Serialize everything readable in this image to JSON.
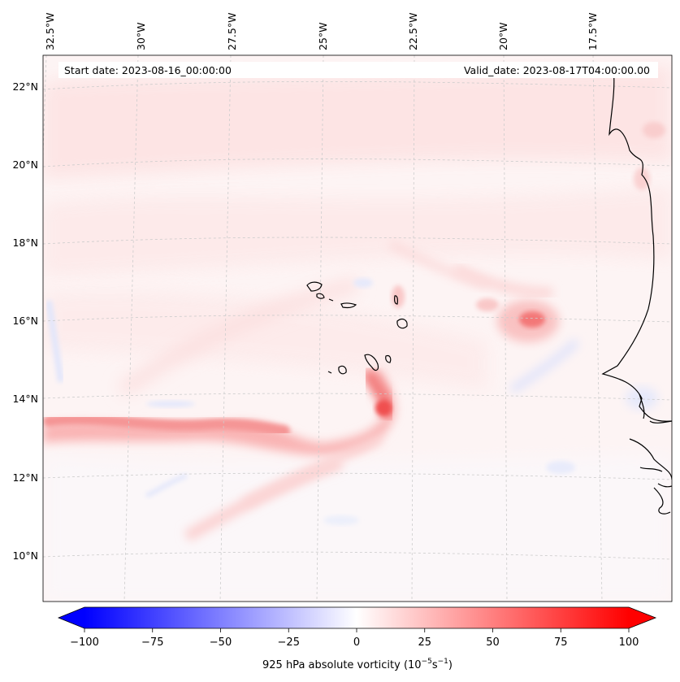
{
  "info": {
    "start_date": "Start date: 2023-08-16_00:00:00",
    "valid_date": "Valid_date: 2023-08-17T04:00:00.00"
  },
  "map": {
    "lon_ticks": [
      "32.5°W",
      "30°W",
      "27.5°W",
      "25°W",
      "22.5°W",
      "20°W",
      "17.5°W"
    ],
    "lat_ticks": [
      "22°N",
      "20°N",
      "18°N",
      "16°N",
      "14°N",
      "12°N",
      "10°N"
    ],
    "coastline_color": "#000000",
    "gridline_color": "#cccccc"
  },
  "colorbar": {
    "ticks": [
      "−100",
      "−75",
      "−50",
      "−25",
      "0",
      "25",
      "50",
      "75",
      "100"
    ],
    "min": -100,
    "max": 100,
    "label": "925 hPa absolute vorticity (10",
    "label_exp1": "−5",
    "label_mid": "s",
    "label_exp2": "−1",
    "label_end": ")",
    "negative_color": "#0000ff",
    "positive_color": "#ff0000",
    "extend": "both"
  }
}
